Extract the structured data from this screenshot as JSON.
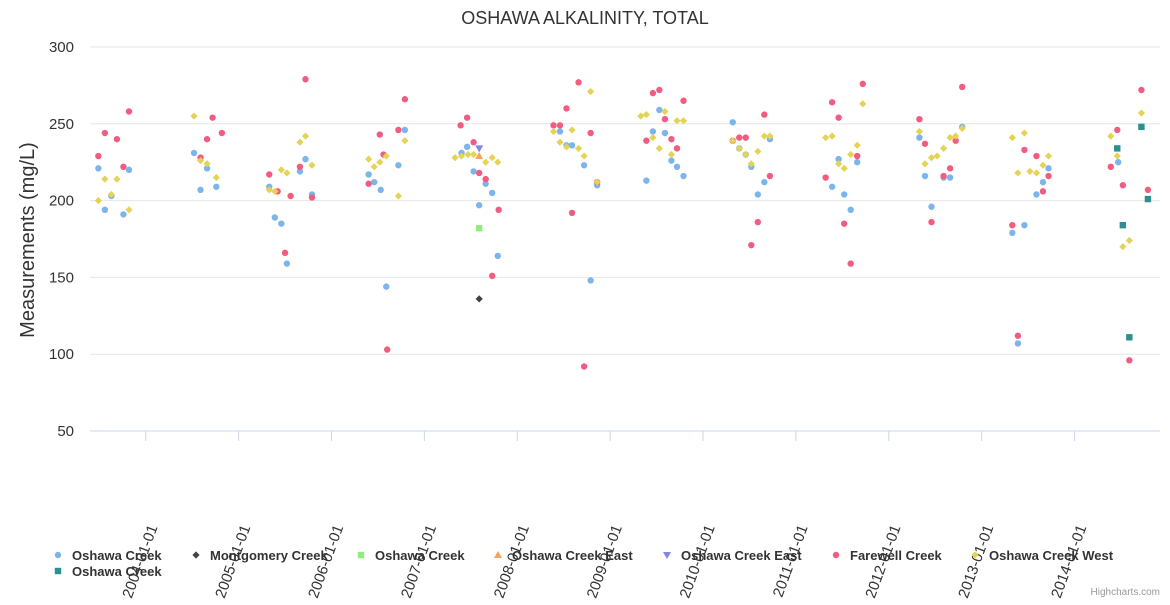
{
  "chart_data": {
    "type": "scatter",
    "title": "OSHAWA ALKALINITY, TOTAL",
    "ylabel": "Measurements (mg/L)",
    "xlabel": "",
    "ylim": [
      50,
      300
    ],
    "y_ticks": [
      50,
      100,
      150,
      200,
      250,
      300
    ],
    "xlim": [
      2003.4,
      2014.92
    ],
    "x_ticks": [
      {
        "label": "2004-01-01",
        "value": 2004.0
      },
      {
        "label": "2005-01-01",
        "value": 2005.0
      },
      {
        "label": "2006-01-01",
        "value": 2006.0
      },
      {
        "label": "2007-01-01",
        "value": 2007.0
      },
      {
        "label": "2008-01-01",
        "value": 2008.0
      },
      {
        "label": "2009-01-01",
        "value": 2009.0
      },
      {
        "label": "2010-01-01",
        "value": 2010.0
      },
      {
        "label": "2011-01-01",
        "value": 2011.0
      },
      {
        "label": "2012-01-01",
        "value": 2012.0
      },
      {
        "label": "2013-01-01",
        "value": 2013.0
      },
      {
        "label": "2014-01-01",
        "value": 2014.0
      }
    ],
    "grid": true,
    "legend_position": "bottom",
    "series": [
      {
        "name": "Oshawa Creek",
        "color": "#7cb5ec",
        "marker": "circle",
        "x": [
          2003.49,
          2003.56,
          2003.63,
          2003.76,
          2003.82,
          2004.52,
          2004.59,
          2004.66,
          2004.76,
          2005.33,
          2005.39,
          2005.46,
          2005.52,
          2005.66,
          2005.72,
          2005.79,
          2006.4,
          2006.46,
          2006.53,
          2006.59,
          2006.72,
          2006.79,
          2007.4,
          2007.46,
          2007.53,
          2007.59,
          2007.66,
          2007.73,
          2007.79,
          2008.46,
          2008.53,
          2008.59,
          2008.72,
          2008.79,
          2008.86,
          2009.39,
          2009.46,
          2009.53,
          2009.59,
          2009.66,
          2009.72,
          2009.79,
          2010.32,
          2010.39,
          2010.46,
          2010.52,
          2010.59,
          2010.66,
          2010.72,
          2011.39,
          2011.46,
          2011.52,
          2011.59,
          2011.66,
          2012.33,
          2012.39,
          2012.46,
          2012.59,
          2012.66,
          2012.79,
          2013.33,
          2013.39,
          2013.46,
          2013.59,
          2013.66,
          2013.72,
          2014.47
        ],
        "y": [
          221,
          194,
          203,
          191,
          220,
          231,
          207,
          221,
          209,
          209,
          189,
          185,
          159,
          219,
          227,
          204,
          217,
          212,
          207,
          144,
          223,
          246,
          231,
          235,
          219,
          197,
          211,
          205,
          164,
          245,
          236,
          236,
          223,
          148,
          210,
          213,
          245,
          259,
          244,
          226,
          222,
          216,
          251,
          234,
          230,
          222,
          204,
          212,
          240,
          209,
          227,
          204,
          194,
          225,
          241,
          216,
          196,
          215,
          215,
          248,
          179,
          107,
          184,
          204,
          212,
          221,
          225
        ]
      },
      {
        "name": "Montgomery Creek",
        "color": "#434348",
        "marker": "diamond",
        "x": [
          2007.59
        ],
        "y": [
          136
        ]
      },
      {
        "name": "Oshawa Creek",
        "color": "#90ed7d",
        "marker": "square",
        "x": [
          2007.59
        ],
        "y": [
          182
        ]
      },
      {
        "name": "Oshawa Creek East",
        "color": "#f7a35c",
        "marker": "triangle",
        "x": [
          2007.59
        ],
        "y": [
          229
        ]
      },
      {
        "name": "Oshawa Creek East",
        "color": "#8085e9",
        "marker": "triangle-down",
        "x": [
          2007.59
        ],
        "y": [
          234
        ]
      },
      {
        "name": "Farewell Creek",
        "color": "#f15c80",
        "marker": "circle",
        "x": [
          2003.49,
          2003.56,
          2003.69,
          2003.76,
          2003.82,
          2004.59,
          2004.66,
          2004.72,
          2004.82,
          2005.33,
          2005.42,
          2005.5,
          2005.56,
          2005.66,
          2005.72,
          2005.79,
          2006.4,
          2006.52,
          2006.56,
          2006.6,
          2006.72,
          2006.79,
          2007.39,
          2007.46,
          2007.53,
          2007.59,
          2007.66,
          2007.73,
          2007.8,
          2008.39,
          2008.46,
          2008.53,
          2008.59,
          2008.66,
          2008.72,
          2008.79,
          2008.86,
          2009.39,
          2009.46,
          2009.53,
          2009.59,
          2009.66,
          2009.72,
          2009.79,
          2010.32,
          2010.39,
          2010.46,
          2010.52,
          2010.59,
          2010.66,
          2010.72,
          2011.32,
          2011.39,
          2011.46,
          2011.52,
          2011.59,
          2011.66,
          2011.72,
          2012.33,
          2012.39,
          2012.46,
          2012.59,
          2012.66,
          2012.72,
          2012.79,
          2013.33,
          2013.39,
          2013.46,
          2013.59,
          2013.66,
          2013.72,
          2014.39,
          2014.46,
          2014.52,
          2014.59,
          2014.72,
          2014.79
        ],
        "y": [
          229,
          244,
          240,
          222,
          258,
          228,
          240,
          254,
          244,
          217,
          206,
          166,
          203,
          222,
          279,
          202,
          211,
          243,
          230,
          103,
          246,
          266,
          249,
          254,
          238,
          218,
          214,
          151,
          194,
          249,
          249,
          260,
          192,
          277,
          92,
          244,
          212,
          239,
          270,
          272,
          253,
          240,
          234,
          265,
          239,
          241,
          241,
          171,
          186,
          256,
          216,
          215,
          264,
          254,
          185,
          159,
          229,
          276,
          253,
          237,
          186,
          216,
          221,
          239,
          274,
          184,
          112,
          233,
          229,
          206,
          216,
          222,
          246,
          210,
          96,
          272,
          207
        ]
      },
      {
        "name": "Oshawa Creek West",
        "color": "#e4d354",
        "marker": "diamond",
        "x": [
          2003.49,
          2003.56,
          2003.63,
          2003.69,
          2003.82,
          2004.52,
          2004.59,
          2004.66,
          2004.76,
          2005.33,
          2005.39,
          2005.46,
          2005.52,
          2005.66,
          2005.72,
          2005.79,
          2006.4,
          2006.46,
          2006.52,
          2006.59,
          2006.72,
          2006.79,
          2007.33,
          2007.4,
          2007.47,
          2007.53,
          2007.66,
          2007.73,
          2007.79,
          2008.39,
          2008.46,
          2008.53,
          2008.59,
          2008.66,
          2008.72,
          2008.79,
          2008.86,
          2009.33,
          2009.39,
          2009.46,
          2009.53,
          2009.59,
          2009.66,
          2009.72,
          2009.79,
          2010.32,
          2010.39,
          2010.46,
          2010.52,
          2010.59,
          2010.66,
          2010.72,
          2011.32,
          2011.39,
          2011.46,
          2011.52,
          2011.59,
          2011.66,
          2011.72,
          2012.33,
          2012.39,
          2012.46,
          2012.52,
          2012.59,
          2012.66,
          2012.72,
          2012.79,
          2013.33,
          2013.39,
          2013.46,
          2013.52,
          2013.59,
          2013.66,
          2013.72,
          2014.39,
          2014.46,
          2014.52,
          2014.59,
          2014.72
        ],
        "y": [
          200,
          214,
          204,
          214,
          194,
          255,
          226,
          224,
          215,
          207,
          206,
          220,
          218,
          238,
          242,
          223,
          227,
          222,
          225,
          229,
          203,
          239,
          228,
          229,
          230,
          230,
          225,
          228,
          225,
          245,
          238,
          235,
          246,
          234,
          229,
          271,
          212,
          255,
          256,
          241,
          234,
          258,
          230,
          252,
          252,
          239,
          234,
          230,
          224,
          232,
          242,
          242,
          241,
          242,
          224,
          221,
          230,
          236,
          263,
          245,
          224,
          228,
          229,
          234,
          241,
          242,
          247,
          241,
          218,
          244,
          219,
          218,
          223,
          229,
          242,
          229,
          170,
          174,
          257
        ]
      },
      {
        "name": "Oshawa Creek",
        "color": "#2b908f",
        "marker": "square",
        "x": [
          2014.46,
          2014.52,
          2014.59,
          2014.72,
          2014.79
        ],
        "y": [
          234,
          184,
          111,
          248,
          201
        ]
      }
    ],
    "credits": "Highcharts.com"
  }
}
